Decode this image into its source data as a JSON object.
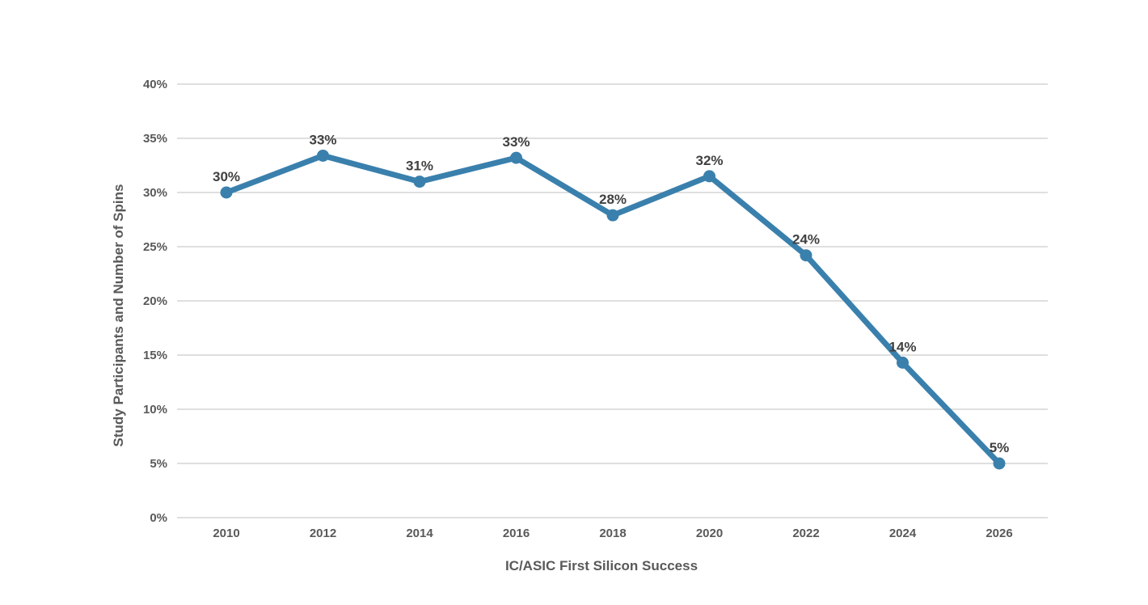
{
  "chart_data": {
    "type": "line",
    "title": "",
    "xlabel": "IC/ASIC First Silicon Success",
    "ylabel": "Study Participants and Number of Spins",
    "categories": [
      "2010",
      "2012",
      "2014",
      "2016",
      "2018",
      "2020",
      "2022",
      "2024",
      "2026"
    ],
    "series": [
      {
        "values": [
          30,
          33.4,
          31,
          33.2,
          27.9,
          31.5,
          24.2,
          14.3,
          5
        ],
        "data_labels": [
          "30%",
          "33%",
          "31%",
          "33%",
          "28%",
          "32%",
          "24%",
          "14%",
          "5%"
        ],
        "color": "#3a80ad"
      }
    ],
    "ylim": [
      0,
      40
    ],
    "yticks": [
      0,
      5,
      10,
      15,
      20,
      25,
      30,
      35,
      40
    ],
    "ytick_labels": [
      "0%",
      "5%",
      "10%",
      "15%",
      "20%",
      "25%",
      "30%",
      "35%",
      "40%"
    ],
    "grid": true,
    "legend": "none"
  }
}
